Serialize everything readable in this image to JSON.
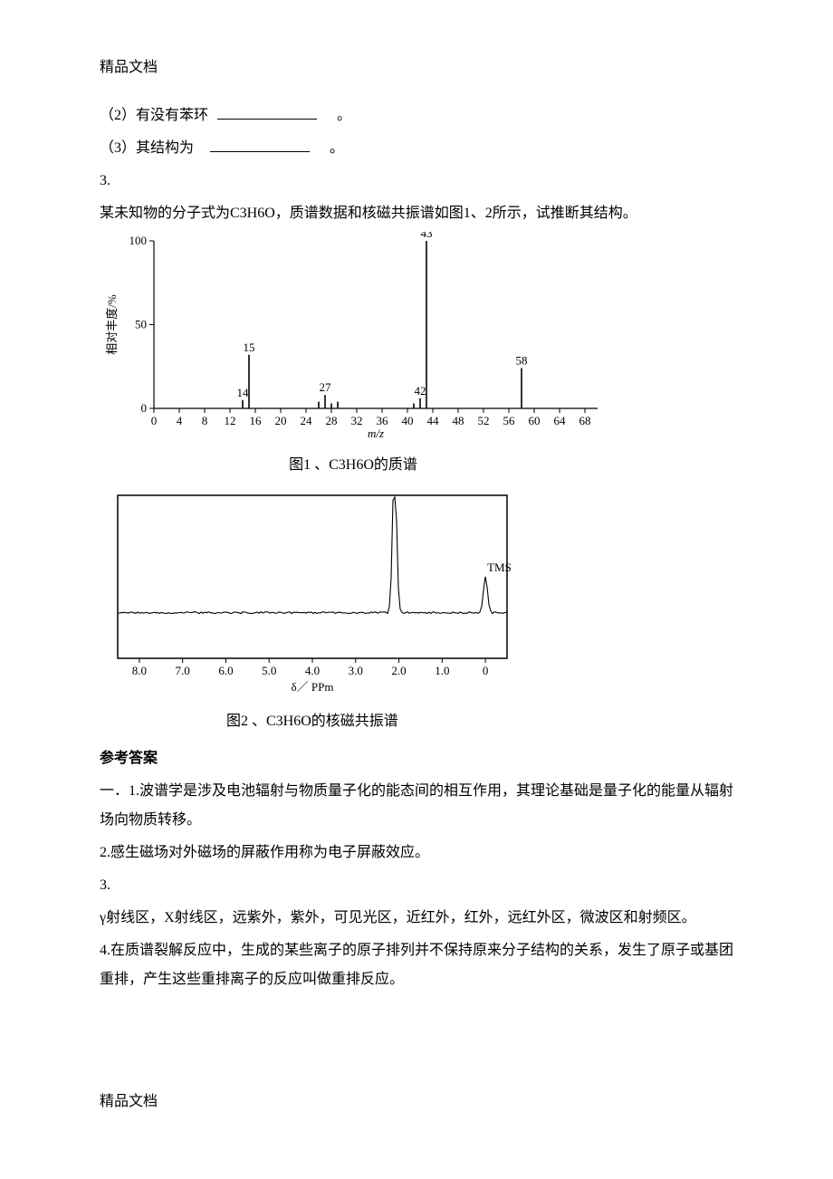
{
  "header": "精品文档",
  "footer": "精品文档",
  "q2": {
    "prefix": "（2）有没有苯环",
    "suffix": "。"
  },
  "q3line": {
    "prefix": "（3）其结构为",
    "suffix": "。"
  },
  "q3num": "3.",
  "q3body": "某未知物的分子式为C3H6O，质谱数据和核磁共振谱如图1、2所示，试推断其结构。",
  "chart1": {
    "type": "bar",
    "caption": "图1 、C3H6O的质谱",
    "ylabel": "相对丰度/%",
    "xlabel": "m/z",
    "xlabel_style": "italic",
    "xlim": [
      0,
      70
    ],
    "ylim": [
      0,
      100
    ],
    "xticks": [
      0,
      4,
      8,
      12,
      16,
      20,
      24,
      28,
      32,
      36,
      40,
      44,
      48,
      52,
      56,
      60,
      64,
      68
    ],
    "yticks": [
      0,
      50,
      100
    ],
    "peaks": [
      {
        "mz": 14,
        "h": 5,
        "label": "14"
      },
      {
        "mz": 15,
        "h": 32,
        "label": "15"
      },
      {
        "mz": 26,
        "h": 4,
        "label": ""
      },
      {
        "mz": 27,
        "h": 8,
        "label": "27"
      },
      {
        "mz": 28,
        "h": 3,
        "label": ""
      },
      {
        "mz": 29,
        "h": 4,
        "label": ""
      },
      {
        "mz": 41,
        "h": 3,
        "label": ""
      },
      {
        "mz": 42,
        "h": 6,
        "label": "42"
      },
      {
        "mz": 43,
        "h": 100,
        "label": "43"
      },
      {
        "mz": 58,
        "h": 24,
        "label": "58"
      }
    ],
    "axis_color": "#000000",
    "bar_color": "#000000",
    "font_size": 13
  },
  "chart2": {
    "type": "line",
    "caption": "图2 、C3H6O的核磁共振谱",
    "xlabel": "δ／ PPm",
    "xlim": [
      8.5,
      -0.5
    ],
    "xticks": [
      8.0,
      7.0,
      6.0,
      5.0,
      4.0,
      3.0,
      2.0,
      1.0,
      0
    ],
    "xtick_labels": [
      "8.0",
      "7.0",
      "6.0",
      "5.0",
      "4.0",
      "3.0",
      "2.0",
      "1.0",
      "0"
    ],
    "baseline_y": 0.28,
    "peaks": [
      {
        "x": 2.1,
        "h": 0.95
      },
      {
        "x": 0.0,
        "h": 0.22
      }
    ],
    "tms_label": "TMS",
    "axis_color": "#000000",
    "line_color": "#000000",
    "font_size": 13
  },
  "answers_title": "参考答案",
  "answers": [
    "一．1.波谱学是涉及电池辐射与物质量子化的能态间的相互作用，其理论基础是量子化的能量从辐射场向物质转移。",
    "2.感生磁场对外磁场的屏蔽作用称为电子屏蔽效应。",
    "3.",
    "γ射线区，X射线区，远紫外，紫外，可见光区，近红外，红外，远红外区，微波区和射频区。",
    "4.在质谱裂解反应中，生成的某些离子的原子排列并不保持原来分子结构的关系，发生了原子或基团重排，产生这些重排离子的反应叫做重排反应。"
  ]
}
